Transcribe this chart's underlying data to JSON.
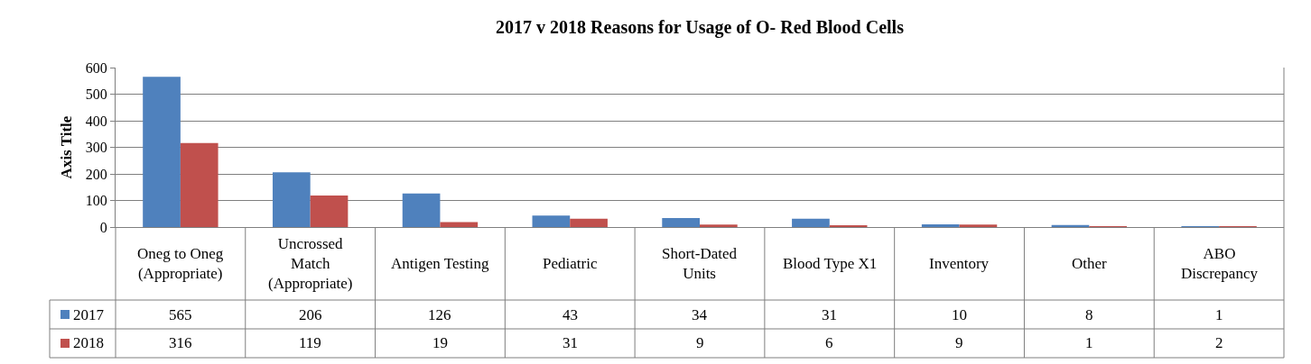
{
  "chart_data": {
    "type": "bar",
    "title": "2017 v 2018 Reasons for Usage of O- Red Blood Cells",
    "ylabel": "Axis Title",
    "categories": [
      "Oneg to Oneg\n(Appropriate)",
      "Uncrossed\nMatch\n(Appropriate)",
      "Antigen Testing",
      "Pediatric",
      "Short-Dated\nUnits",
      "Blood Type X1",
      "Inventory",
      "Other",
      "ABO\nDiscrepancy"
    ],
    "series": [
      {
        "name": "2017",
        "color": "#4f81bd",
        "values": [
          565,
          206,
          126,
          43,
          34,
          31,
          10,
          8,
          1
        ]
      },
      {
        "name": "2018",
        "color": "#c0504d",
        "values": [
          316,
          119,
          19,
          31,
          9,
          6,
          9,
          1,
          2
        ]
      }
    ],
    "ylim": [
      0,
      600
    ],
    "yticks": [
      0,
      100,
      200,
      300,
      400,
      500,
      600
    ],
    "grid": "y",
    "legend": "bottom left",
    "tick_labels": "y",
    "data_labels": true
  }
}
